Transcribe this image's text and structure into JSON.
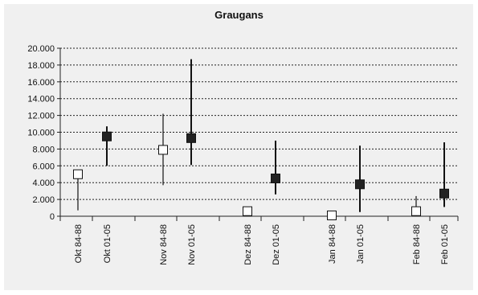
{
  "chart_data": {
    "type": "range",
    "title": "Graugans",
    "xlabel": "",
    "ylabel": "",
    "ylim": [
      0,
      20000
    ],
    "yticks": [
      "0",
      "2.000",
      "4.000",
      "6.000",
      "8.000",
      "10.000",
      "12.000",
      "14.000",
      "16.000",
      "18.000",
      "20.000"
    ],
    "grid": true,
    "legend": "none",
    "categories": [
      "Okt 84-88",
      "Okt 01-05",
      "Nov 84-88",
      "Nov 01-05",
      "Dez 84-88",
      "Dez 01-05",
      "Jan 84-88",
      "Jan 01-05",
      "Feb 84-88",
      "Feb 01-05"
    ],
    "series": [
      {
        "period": "84-88",
        "marker": "open-square",
        "points": [
          {
            "category": "Okt 84-88",
            "value": 5000,
            "min": 700,
            "max": 5300
          },
          {
            "category": "Nov 84-88",
            "value": 7900,
            "min": 3700,
            "max": 12200
          },
          {
            "category": "Dez 84-88",
            "value": 600,
            "min": 600,
            "max": 600
          },
          {
            "category": "Jan 84-88",
            "value": 100,
            "min": 0,
            "max": 500
          },
          {
            "category": "Feb 84-88",
            "value": 600,
            "min": 0,
            "max": 2400
          }
        ]
      },
      {
        "period": "01-05",
        "marker": "filled-square",
        "points": [
          {
            "category": "Okt 01-05",
            "value": 9500,
            "min": 6000,
            "max": 10700
          },
          {
            "category": "Nov 01-05",
            "value": 9300,
            "min": 6100,
            "max": 18700
          },
          {
            "category": "Dez 01-05",
            "value": 4500,
            "min": 2600,
            "max": 9000
          },
          {
            "category": "Jan 01-05",
            "value": 3800,
            "min": 500,
            "max": 8400
          },
          {
            "category": "Feb 01-05",
            "value": 2700,
            "min": 1100,
            "max": 8800
          }
        ]
      }
    ],
    "colors": {
      "open_fill": "#ffffff",
      "filled_fill": "#222222",
      "line": "#111111"
    }
  }
}
